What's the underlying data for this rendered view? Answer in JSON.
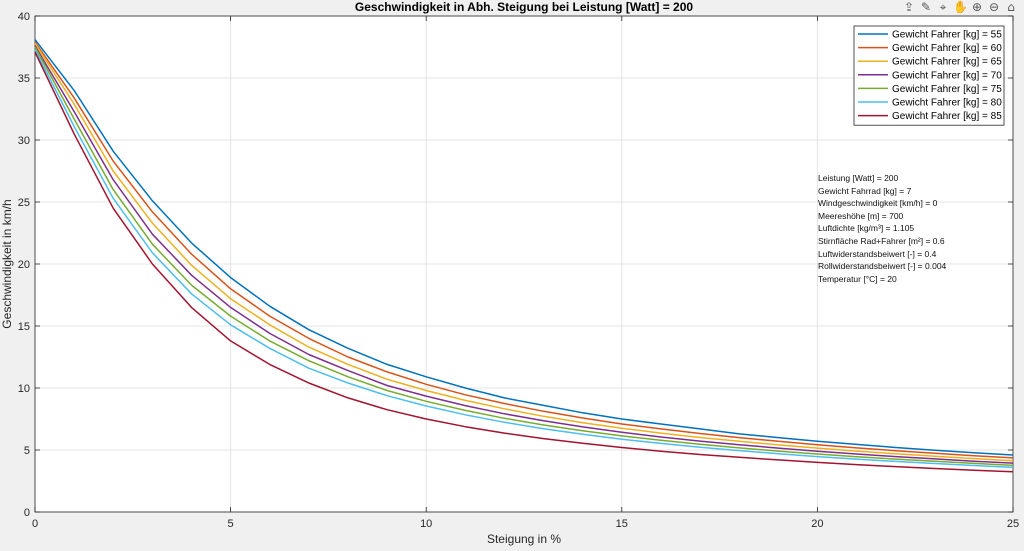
{
  "toolbar": {
    "icons": [
      "export-icon",
      "brush-icon",
      "datatip-icon",
      "pan-icon",
      "zoom-in-icon",
      "zoom-out-icon",
      "home-icon"
    ]
  },
  "chart_data": {
    "type": "line",
    "title": "Geschwindigkeit in Abh. Steigung bei Leistung [Watt] = 200",
    "xlabel": "Steigung in %",
    "ylabel": "Geschwindigkeit in km/h",
    "xlim": [
      0,
      25
    ],
    "ylim": [
      0,
      40
    ],
    "xticks": [
      0,
      5,
      10,
      15,
      20,
      25
    ],
    "yticks": [
      0,
      5,
      10,
      15,
      20,
      25,
      30,
      35,
      40
    ],
    "grid": true,
    "legend_position": "top-right",
    "x": [
      0,
      1,
      2,
      3,
      4,
      5,
      6,
      7,
      8,
      9,
      10,
      11,
      12,
      13,
      14,
      15,
      16,
      17,
      18,
      19,
      20,
      21,
      22,
      23,
      24,
      25
    ],
    "series": [
      {
        "name": "Gewicht Fahrer [kg] = 55",
        "color": "#0072bd",
        "values": [
          38.1,
          34.0,
          29.1,
          25.1,
          21.7,
          18.9,
          16.6,
          14.7,
          13.2,
          11.9,
          10.9,
          10.0,
          9.2,
          8.6,
          8.0,
          7.5,
          7.1,
          6.7,
          6.3,
          6.0,
          5.7,
          5.45,
          5.2,
          4.98,
          4.78,
          4.6
        ]
      },
      {
        "name": "Gewicht Fahrer [kg] = 60",
        "color": "#d95319",
        "values": [
          37.9,
          33.4,
          28.3,
          24.2,
          20.8,
          18.0,
          15.8,
          14.0,
          12.5,
          11.3,
          10.3,
          9.45,
          8.75,
          8.12,
          7.58,
          7.1,
          6.7,
          6.33,
          6.0,
          5.7,
          5.42,
          5.17,
          4.94,
          4.73,
          4.54,
          4.36
        ]
      },
      {
        "name": "Gewicht Fahrer [kg] = 65",
        "color": "#edb120",
        "values": [
          37.8,
          32.9,
          27.5,
          23.3,
          19.9,
          17.2,
          15.1,
          13.3,
          11.9,
          10.7,
          9.8,
          9.0,
          8.32,
          7.72,
          7.2,
          6.75,
          6.36,
          6.01,
          5.7,
          5.41,
          5.15,
          4.91,
          4.69,
          4.49,
          4.31,
          4.14
        ]
      },
      {
        "name": "Gewicht Fahrer [kg] = 70",
        "color": "#7e2f8e",
        "values": [
          37.6,
          32.3,
          26.8,
          22.4,
          19.1,
          16.5,
          14.4,
          12.7,
          11.4,
          10.2,
          9.35,
          8.58,
          7.92,
          7.36,
          6.86,
          6.43,
          6.05,
          5.72,
          5.42,
          5.15,
          4.9,
          4.68,
          4.47,
          4.28,
          4.1,
          3.94
        ]
      },
      {
        "name": "Gewicht Fahrer [kg] = 75",
        "color": "#77ac30",
        "values": [
          37.5,
          31.7,
          26.0,
          21.6,
          18.3,
          15.8,
          13.8,
          12.2,
          10.9,
          9.8,
          8.93,
          8.19,
          7.56,
          7.02,
          6.55,
          6.14,
          5.78,
          5.46,
          5.17,
          4.91,
          4.68,
          4.46,
          4.27,
          4.09,
          3.92,
          3.76
        ]
      },
      {
        "name": "Gewicht Fahrer [kg] = 80",
        "color": "#4dbeee",
        "values": [
          37.3,
          31.1,
          25.3,
          20.9,
          17.6,
          15.1,
          13.2,
          11.6,
          10.4,
          9.38,
          8.55,
          7.84,
          7.23,
          6.72,
          6.27,
          5.87,
          5.53,
          5.22,
          4.95,
          4.7,
          4.47,
          4.27,
          4.08,
          3.91,
          3.75,
          3.6
        ]
      },
      {
        "name": "Gewicht Fahrer [kg] = 85",
        "color": "#a2142f",
        "values": [
          37.1,
          30.5,
          24.5,
          20.0,
          16.5,
          13.8,
          11.9,
          10.4,
          9.2,
          8.25,
          7.5,
          6.88,
          6.36,
          5.92,
          5.54,
          5.2,
          4.9,
          4.64,
          4.41,
          4.2,
          4.0,
          3.82,
          3.66,
          3.51,
          3.37,
          3.24
        ]
      }
    ]
  },
  "info_lines": [
    "Leistung [Watt] = 200",
    "Gewicht Fahrrad [kg] = 7",
    "Windgeschwindigkeit [km/h] = 0",
    "Meereshöhe [m] = 700",
    "Luftdichte [kg/m³] = 1.105",
    "Stirnfläche Rad+Fahrer [m²] = 0.6",
    "Luftwiderstandsbeiwert [-] = 0.4",
    "Rollwiderstandsbeiwert [-] = 0.004",
    "Temperatur [°C] = 20"
  ]
}
